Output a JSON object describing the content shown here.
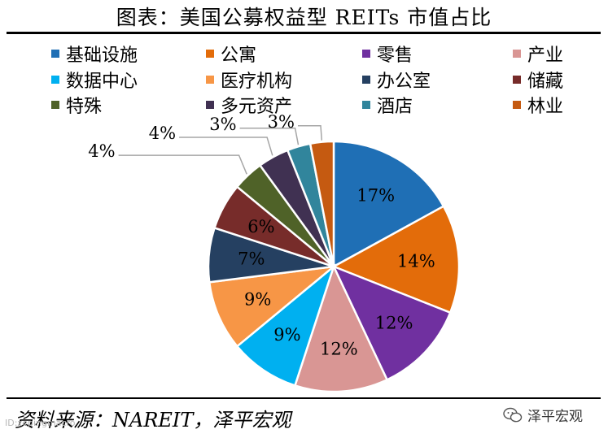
{
  "title": "图表：美国公募权益型 REITs 市值占比",
  "source": "资料来源：NAREIT，泽平宏观",
  "watermark": "泽平宏观",
  "watermark_small": "ID:zepingmacro",
  "chart_data": {
    "type": "pie",
    "title": "图表：美国公募权益型 REITs 市值占比",
    "legend_position": "top",
    "slices": [
      {
        "name": "基础设施",
        "value": 17,
        "label": "17%",
        "color": "#1f6fb5"
      },
      {
        "name": "公寓",
        "value": 14,
        "label": "14%",
        "color": "#e36c0a"
      },
      {
        "name": "零售",
        "value": 12,
        "label": "12%",
        "color": "#7030a0"
      },
      {
        "name": "产业",
        "value": 12,
        "label": "12%",
        "color": "#d99694"
      },
      {
        "name": "数据中心",
        "value": 9,
        "label": "9%",
        "color": "#00b0f0"
      },
      {
        "name": "医疗机构",
        "value": 9,
        "label": "9%",
        "color": "#f79646"
      },
      {
        "name": "办公室",
        "value": 7,
        "label": "7%",
        "color": "#254061"
      },
      {
        "name": "储藏",
        "value": 6,
        "label": "6%",
        "color": "#772c2a"
      },
      {
        "name": "特殊",
        "value": 4,
        "label": "4%",
        "color": "#4f6228"
      },
      {
        "name": "多元资产",
        "value": 4,
        "label": "4%",
        "color": "#403152"
      },
      {
        "name": "酒店",
        "value": 3,
        "label": "3%",
        "color": "#31859c"
      },
      {
        "name": "林业",
        "value": 3,
        "label": "3%",
        "color": "#c55a11"
      }
    ]
  }
}
